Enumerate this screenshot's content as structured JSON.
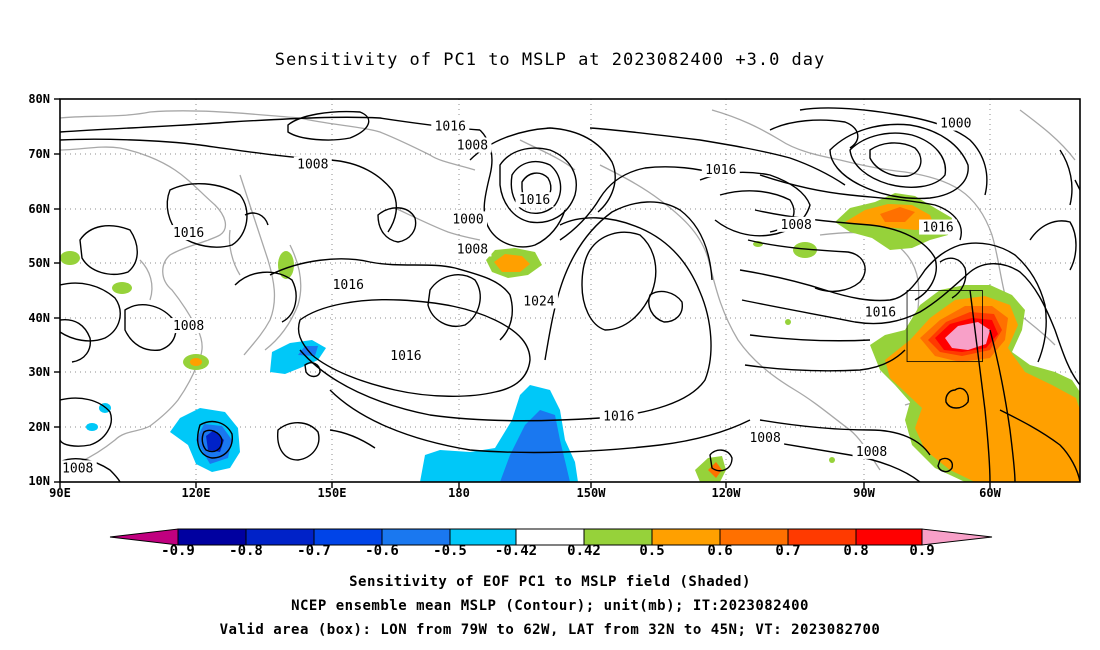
{
  "title": "Sensitivity of PC1 to MSLP at 2023082400 +3.0 day",
  "map": {
    "lat_labels": [
      "80N",
      "70N",
      "60N",
      "50N",
      "40N",
      "30N",
      "20N",
      "10N"
    ],
    "lon_labels": [
      "90E",
      "120E",
      "150E",
      "180",
      "150W",
      "120W",
      "90W",
      "60W"
    ],
    "lon_range": [
      "90E",
      "40W"
    ],
    "lat_range": [
      "10N",
      "80N"
    ],
    "grid": "dotted",
    "coastline_color": "#a8a8a8",
    "contour_color": "#000000",
    "contour_labels": [
      {
        "text": "1016",
        "lon": 178,
        "lat": 75
      },
      {
        "text": "1008",
        "lon": 183,
        "lat": 71.5
      },
      {
        "text": "1000",
        "lon": 182,
        "lat": 58
      },
      {
        "text": "1016",
        "lon": 197,
        "lat": 61.5
      },
      {
        "text": "1008",
        "lon": 183,
        "lat": 52.5
      },
      {
        "text": "1024",
        "lon": 198,
        "lat": 43
      },
      {
        "text": "1016",
        "lon": 168,
        "lat": 33
      },
      {
        "text": "1016",
        "lon": 216,
        "lat": 22
      },
      {
        "text": "1016",
        "lon": 239,
        "lat": 67
      },
      {
        "text": "1008",
        "lon": 147,
        "lat": 68
      },
      {
        "text": "1016",
        "lon": 119,
        "lat": 55.5
      },
      {
        "text": "1016",
        "lon": 155,
        "lat": 46
      },
      {
        "text": "1008",
        "lon": 119,
        "lat": 38.5
      },
      {
        "text": "1008",
        "lon": 94,
        "lat": 12.5
      },
      {
        "text": "1008",
        "lon": 249,
        "lat": 18
      },
      {
        "text": "1008",
        "lon": 256,
        "lat": 57
      },
      {
        "text": "1000",
        "lon": 292,
        "lat": 75.5
      },
      {
        "text": "1016",
        "lon": 288,
        "lat": 56.5
      },
      {
        "text": "1016",
        "lon": 275,
        "lat": 41
      },
      {
        "text": "1008",
        "lon": 273,
        "lat": 15.5
      }
    ],
    "valid_box": {
      "lon_min": 281,
      "lon_max": 298,
      "lat_min": 32,
      "lat_max": 45
    }
  },
  "colorbar": {
    "ticks": [
      "-0.9",
      "-0.8",
      "-0.7",
      "-0.6",
      "-0.5",
      "-0.42",
      "0.42",
      "0.5",
      "0.6",
      "0.7",
      "0.8",
      "0.9"
    ],
    "colors": [
      "#c0007f",
      "#0000a0",
      "#0022c8",
      "#0044e8",
      "#1a78f0",
      "#00c8f8",
      "#ffffff",
      "#96d23a",
      "#ffa000",
      "#ff7000",
      "#ff3a00",
      "#ff0000",
      "#f8a0c8"
    ]
  },
  "footer": {
    "line1": "Sensitivity of EOF PC1 to MSLP field (Shaded)",
    "line2": "NCEP ensemble mean MSLP (Contour); unit(mb); IT:2023082400",
    "line3": "Valid area (box): LON from 79W to 62W, LAT from 32N to 45N; VT: 2023082700"
  }
}
